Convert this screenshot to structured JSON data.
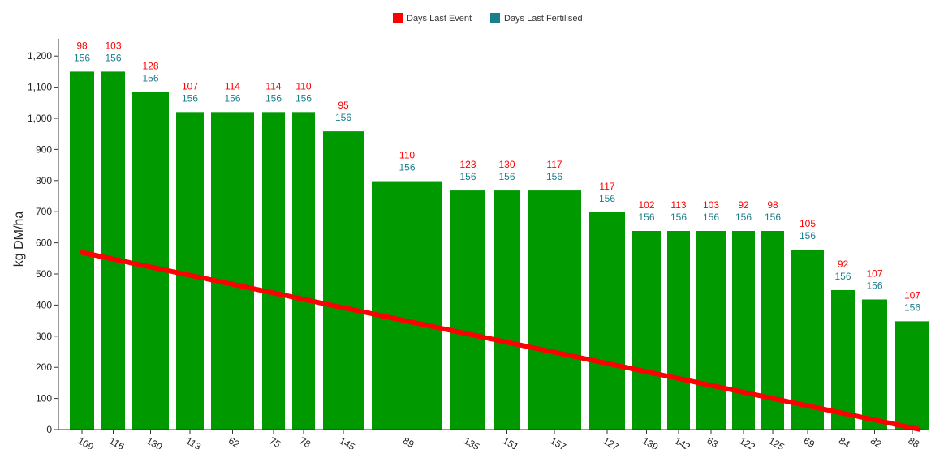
{
  "chart_data": {
    "type": "bar",
    "ylabel": "kg DM/ha",
    "ylim": [
      0,
      1250
    ],
    "y_ticks": [
      0,
      100,
      200,
      300,
      400,
      500,
      600,
      700,
      800,
      900,
      1000,
      1100,
      1200
    ],
    "y_tick_labels": [
      "0",
      "100",
      "200",
      "300",
      "400",
      "500",
      "600",
      "700",
      "800",
      "900",
      "1,000",
      "1,100",
      "1,200"
    ],
    "categories": [
      "109",
      "116",
      "130",
      "113",
      "62",
      "75",
      "78",
      "145",
      "89",
      "135",
      "151",
      "157",
      "127",
      "139",
      "142",
      "63",
      "122",
      "125",
      "69",
      "84",
      "82",
      "88"
    ],
    "values": [
      1150,
      1150,
      1085,
      1020,
      1020,
      1020,
      1020,
      958,
      798,
      768,
      768,
      768,
      698,
      638,
      638,
      638,
      638,
      638,
      578,
      448,
      418,
      348
    ],
    "series": [
      {
        "name": "Days Last Event",
        "values": [
          98,
          103,
          128,
          107,
          114,
          114,
          110,
          95,
          110,
          123,
          130,
          117,
          117,
          102,
          113,
          103,
          92,
          98,
          105,
          92,
          107,
          107
        ]
      },
      {
        "name": "Days Last Fertilised",
        "values": [
          156,
          156,
          156,
          156,
          156,
          156,
          156,
          156,
          156,
          156,
          156,
          156,
          156,
          156,
          156,
          156,
          156,
          156,
          156,
          156,
          156,
          156
        ]
      }
    ],
    "trend_line": {
      "start": 570,
      "end": 0
    },
    "legend": {
      "position": "top-center"
    },
    "grid": false
  },
  "colors": {
    "bar": "#009900",
    "trend": "#ff0000",
    "event": "#ff0000",
    "fertilised": "#1a7f8c",
    "axis": "#333333"
  }
}
